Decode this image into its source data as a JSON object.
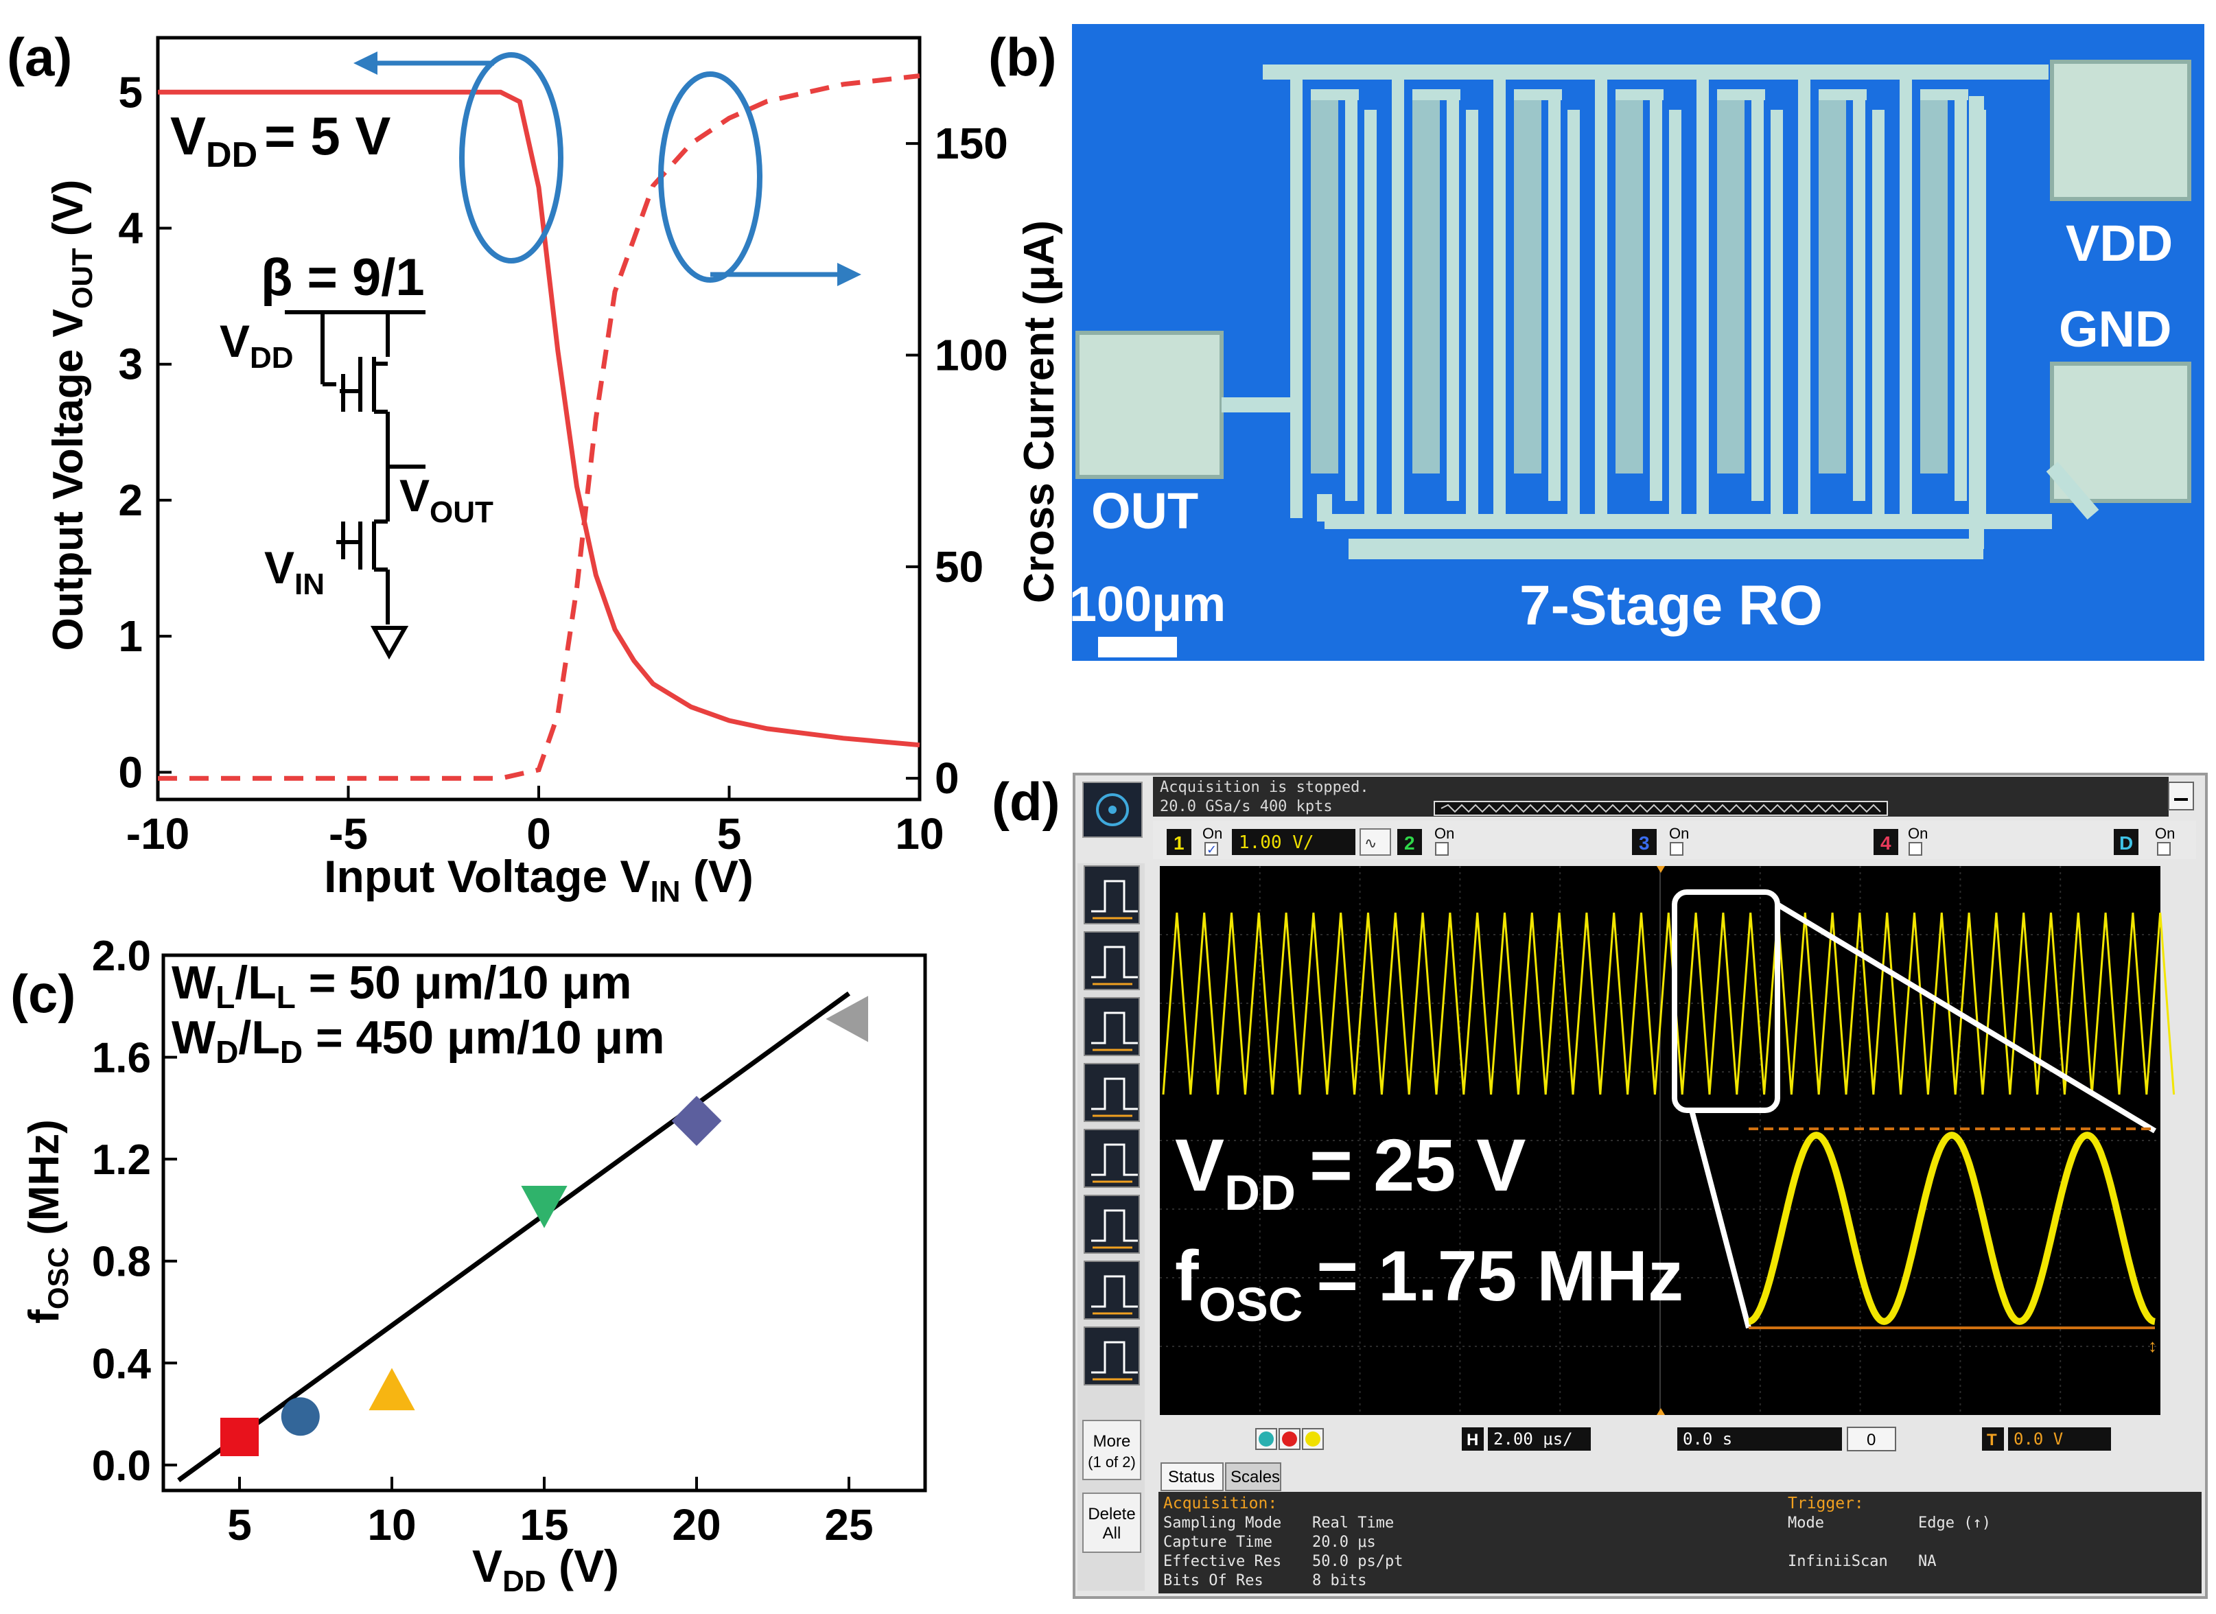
{
  "panel_a": {
    "label": "(a)",
    "vdd_label": "V",
    "vdd_sub": "DD",
    "vdd_value": "= 5 V",
    "beta_label": "β = 9/1",
    "schem_vdd": "V",
    "schem_vdd_sub": "DD",
    "schem_vout": "V",
    "schem_vout_sub": "OUT",
    "schem_vin": "V",
    "schem_vin_sub": "IN",
    "chart_data": {
      "type": "line",
      "xlabel": "Input Voltage V",
      "xlabel_sub": "IN",
      "xlabel_unit": " (V)",
      "ylabel": "Output Voltage V",
      "ylabel_sub": "OUT",
      "ylabel_unit": " (V)",
      "y2label": "Cross Current (μA)",
      "xlim": [
        -10,
        10
      ],
      "ylim": [
        -0.2,
        5.4
      ],
      "y2lim": [
        -5,
        175
      ],
      "xticks": [
        "-10",
        "-5",
        "0",
        "5",
        "10"
      ],
      "yticks": [
        "0",
        "1",
        "2",
        "3",
        "4",
        "5"
      ],
      "y2ticks": [
        "0",
        "50",
        "100",
        "150"
      ],
      "series": [
        {
          "name": "VOUT",
          "axis": "left",
          "style": "solid",
          "color": "#e8403f",
          "x": [
            -10,
            -1,
            -0.5,
            0,
            0.5,
            1,
            1.5,
            2,
            2.5,
            3,
            4,
            5,
            6,
            8,
            10
          ],
          "y": [
            5,
            5,
            4.93,
            4.3,
            3.1,
            2.1,
            1.45,
            1.05,
            0.82,
            0.65,
            0.48,
            0.38,
            0.32,
            0.25,
            0.2
          ]
        },
        {
          "name": "Cross Current",
          "axis": "right",
          "style": "dashed",
          "color": "#e8403f",
          "x": [
            -10,
            -1,
            0,
            0.5,
            1,
            1.5,
            2,
            3,
            4,
            5,
            6,
            8,
            10
          ],
          "y": [
            0,
            0,
            2,
            15,
            45,
            85,
            115,
            140,
            150,
            156,
            160,
            164,
            166
          ]
        }
      ]
    }
  },
  "panel_b": {
    "label": "(b)",
    "vdd": "VDD",
    "gnd": "GND",
    "out": "OUT",
    "scale": "100μm",
    "title": "7-Stage RO"
  },
  "panel_c": {
    "label": "(c)",
    "annot1": "W",
    "annot1_sub": "L",
    "annot1_mid": "/L",
    "annot1_sub2": "L",
    "annot1_end": " = 50 μm/10 μm",
    "annot2": "W",
    "annot2_sub": "D",
    "annot2_mid": "/L",
    "annot2_sub2": "D",
    "annot2_end": " = 450 μm/10 μm",
    "chart_data": {
      "type": "scatter",
      "xlabel": "V",
      "xlabel_sub": "DD",
      "xlabel_unit": " (V)",
      "ylabel": "f",
      "ylabel_sub": "OSC",
      "ylabel_unit": " (MHz)",
      "xlim": [
        2.5,
        27.5
      ],
      "ylim": [
        -0.1,
        2.0
      ],
      "xticks": [
        "5",
        "10",
        "15",
        "20",
        "25"
      ],
      "yticks": [
        "0.0",
        "0.4",
        "0.8",
        "1.2",
        "1.6",
        "2.0"
      ],
      "points": [
        {
          "x": 5,
          "y": 0.11,
          "marker": "square",
          "color": "#e8121c"
        },
        {
          "x": 7,
          "y": 0.19,
          "marker": "circle",
          "color": "#336699"
        },
        {
          "x": 10,
          "y": 0.29,
          "marker": "triangle-up",
          "color": "#f7b512"
        },
        {
          "x": 15,
          "y": 1.02,
          "marker": "triangle-down",
          "color": "#2fb36b"
        },
        {
          "x": 20,
          "y": 1.35,
          "marker": "diamond",
          "color": "#5c5f9e"
        },
        {
          "x": 25,
          "y": 1.75,
          "marker": "triangle-left",
          "color": "#9c9c9c"
        }
      ],
      "fit": {
        "x": [
          3,
          25
        ],
        "y": [
          -0.06,
          1.85
        ]
      }
    }
  },
  "panel_d": {
    "label": "(d)",
    "status1": "Acquisition is stopped.",
    "status2": "20.0 GSa/s   400 kpts",
    "ch1": "1",
    "ch1_on": "On",
    "ch1_scale": "1.00 V/",
    "ch2": "2",
    "ch2_on": "On",
    "ch3": "3",
    "ch3_on": "On",
    "ch4": "4",
    "ch4_on": "On",
    "chD": "D",
    "chD_on": "On",
    "more": "More",
    "more_sub": "(1 of 2)",
    "delete": "Delete",
    "delete_sub": "All",
    "h_label": "H",
    "h_value": "2.00 μs/",
    "t_offset": "0.0 s",
    "zoom_num": "0",
    "t_label": "T",
    "t_value": "0.0 V",
    "tab_status": "Status",
    "tab_scales": "Scales",
    "acq_title": "Acquisition:",
    "acq_rows": [
      {
        "k": "Sampling Mode",
        "v": "Real Time"
      },
      {
        "k": "Capture Time",
        "v": "20.0 μs"
      },
      {
        "k": "Effective Res",
        "v": "50.0 ps/pt"
      },
      {
        "k": "Bits Of Res",
        "v": "8 bits"
      }
    ],
    "trig_title": "Trigger:",
    "trig_rows": [
      {
        "k": "Mode",
        "v": "Edge (↑)"
      },
      {
        "k": "InfiniiScan",
        "v": "NA"
      }
    ],
    "vdd_overlay": "V",
    "vdd_overlay_sub": "DD",
    "vdd_overlay_val": "= 25 V",
    "fosc_overlay": "f",
    "fosc_overlay_sub": "OSC",
    "fosc_overlay_val": "= 1.75 MHz"
  }
}
